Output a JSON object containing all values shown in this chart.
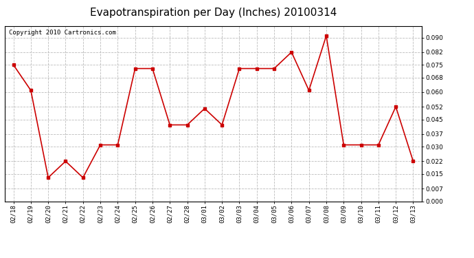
{
  "title": "Evapotranspiration per Day (Inches) 20100314",
  "copyright_text": "Copyright 2010 Cartronics.com",
  "x_labels": [
    "02/18",
    "02/19",
    "02/20",
    "02/21",
    "02/22",
    "02/23",
    "02/24",
    "02/25",
    "02/26",
    "02/27",
    "02/28",
    "03/01",
    "03/02",
    "03/03",
    "03/04",
    "03/05",
    "03/06",
    "03/07",
    "03/08",
    "03/09",
    "03/10",
    "03/11",
    "03/12",
    "03/13"
  ],
  "y_values": [
    0.075,
    0.061,
    0.013,
    0.022,
    0.013,
    0.031,
    0.031,
    0.073,
    0.073,
    0.042,
    0.042,
    0.051,
    0.042,
    0.073,
    0.073,
    0.073,
    0.082,
    0.061,
    0.091,
    0.031,
    0.031,
    0.031,
    0.052,
    0.022
  ],
  "line_color": "#cc0000",
  "marker": "s",
  "marker_size": 2.5,
  "line_width": 1.2,
  "background_color": "#ffffff",
  "plot_bg_color": "#ffffff",
  "grid_color": "#bbbbbb",
  "grid_style": "--",
  "ylim": [
    0.0,
    0.0965
  ],
  "yticks": [
    0.0,
    0.007,
    0.015,
    0.022,
    0.03,
    0.037,
    0.045,
    0.052,
    0.06,
    0.068,
    0.075,
    0.082,
    0.09
  ],
  "title_fontsize": 11,
  "copyright_fontsize": 6.5,
  "tick_fontsize": 6.5,
  "axis_border_color": "#000000"
}
